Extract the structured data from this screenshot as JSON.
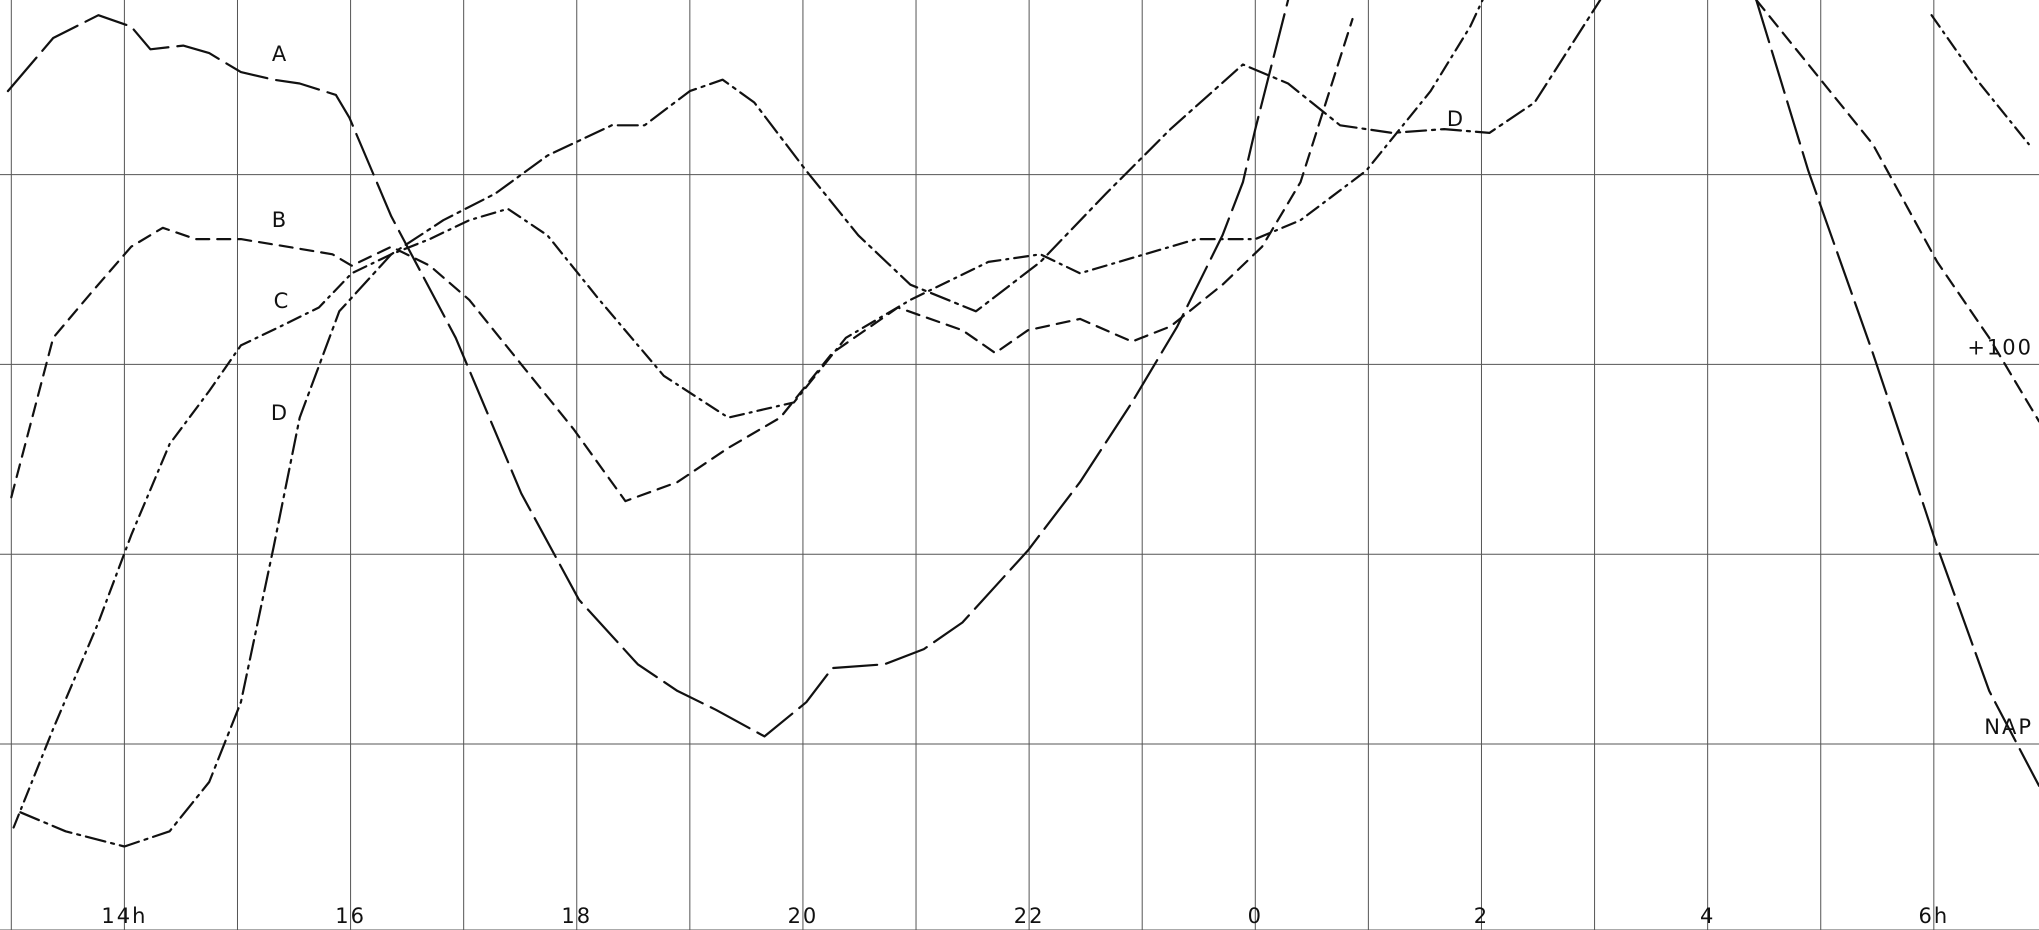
{
  "chart_data": {
    "type": "line",
    "xlim": [
      12.9,
      30.93
    ],
    "ylim": [
      -49,
      196
    ],
    "xgrid": [
      13,
      14,
      15,
      16,
      17,
      18,
      19,
      20,
      21,
      22,
      23,
      24,
      25,
      26,
      27,
      28,
      29,
      30
    ],
    "ygrid": [
      0,
      50,
      100,
      150
    ],
    "xticks": [
      {
        "value": 14,
        "label": "14h"
      },
      16,
      18,
      20,
      22,
      {
        "value": 24,
        "label": "0"
      },
      {
        "value": 26,
        "label": "2"
      },
      {
        "value": 28,
        "label": "4"
      },
      {
        "value": 30,
        "label": "6h"
      }
    ],
    "yticks": [
      {
        "value": 100,
        "label": "+100"
      },
      {
        "value": 0,
        "label": "NAP"
      }
    ],
    "series": [
      {
        "name": "A",
        "color": "#111111",
        "dash": "44 9",
        "x": [
          12.97,
          13.37,
          13.77,
          14.06,
          14.23,
          14.52,
          14.75,
          15.03,
          15.32,
          15.55,
          15.87,
          15.99,
          16.36,
          16.93,
          17.51,
          18.02,
          18.54,
          18.89,
          19.23,
          19.66,
          20.03,
          20.26,
          20.72,
          21.07,
          21.41,
          21.99,
          22.45,
          22.91,
          23.31,
          23.71,
          23.89,
          24.0,
          24.29,
          null,
          28.43,
          28.89,
          29.46,
          29.92,
          30.03,
          30.49,
          30.93
        ],
        "values": [
          172,
          186,
          192,
          189,
          183,
          184,
          182,
          177,
          175,
          174,
          171,
          165,
          139,
          107,
          66,
          38,
          21,
          14,
          9,
          2,
          11,
          20,
          21,
          25,
          32,
          51,
          69,
          90,
          110,
          134,
          148,
          162,
          196,
          null,
          196,
          151,
          103,
          62,
          52,
          14,
          -11
        ]
      },
      {
        "name": "B",
        "color": "#111111",
        "dash": "13 8",
        "x": [
          13.0,
          13.37,
          13.71,
          14.06,
          14.34,
          14.63,
          15.03,
          15.44,
          15.84,
          16.01,
          16.36,
          16.7,
          17.05,
          17.51,
          17.97,
          18.43,
          18.89,
          19.34,
          19.8,
          20.26,
          20.84,
          21.41,
          21.7,
          21.99,
          22.45,
          22.91,
          23.25,
          23.71,
          24.06,
          24.4,
          24.86,
          null,
          28.43,
          29.0,
          29.46,
          30.03,
          30.49,
          30.93
        ],
        "values": [
          65,
          107,
          119,
          131,
          136,
          133,
          133,
          131,
          129,
          126,
          131,
          126,
          117,
          100,
          83,
          64,
          69,
          78,
          86,
          103,
          115,
          109,
          103,
          109,
          112,
          106,
          110,
          121,
          131,
          148,
          191,
          null,
          196,
          175,
          158,
          127,
          107,
          85
        ]
      },
      {
        "name": "C",
        "color": "#111111",
        "dash": "14 6 2 6",
        "x": [
          13.02,
          13.37,
          13.77,
          14.06,
          14.4,
          14.75,
          15.03,
          15.38,
          15.72,
          16.01,
          16.36,
          16.7,
          17.05,
          17.39,
          17.74,
          18.2,
          18.77,
          19.34,
          19.92,
          20.38,
          20.95,
          21.64,
          22.1,
          22.45,
          23.02,
          23.48,
          24.0,
          24.4,
          24.98,
          25.55,
          25.9,
          26.01,
          null,
          29.98,
          30.38,
          30.84
        ],
        "values": [
          -22,
          4,
          32,
          55,
          79,
          93,
          105,
          110,
          115,
          124,
          129,
          133,
          138,
          141,
          134,
          117,
          97,
          86,
          90,
          107,
          117,
          127,
          129,
          124,
          129,
          133,
          133,
          138,
          151,
          172,
          189,
          196,
          null,
          192,
          175,
          158
        ]
      },
      {
        "name": "D",
        "color": "#111111",
        "dash": "20 6 3 6",
        "x": [
          13.08,
          13.48,
          14.0,
          14.4,
          14.75,
          15.03,
          15.32,
          15.55,
          15.9,
          16.36,
          16.82,
          17.28,
          17.74,
          18.31,
          18.6,
          19.0,
          19.29,
          19.57,
          20.03,
          20.49,
          20.95,
          21.53,
          22.1,
          22.68,
          23.25,
          23.89,
          24.29,
          24.75,
          25.21,
          25.67,
          26.07,
          26.47,
          27.05
        ],
        "values": [
          -18,
          -23,
          -27,
          -23,
          -10,
          11,
          52,
          86,
          114,
          129,
          138,
          145,
          155,
          163,
          163,
          172,
          175,
          169,
          151,
          134,
          121,
          114,
          127,
          145,
          162,
          179,
          174,
          163,
          161,
          162,
          161,
          169,
          196
        ]
      }
    ]
  }
}
